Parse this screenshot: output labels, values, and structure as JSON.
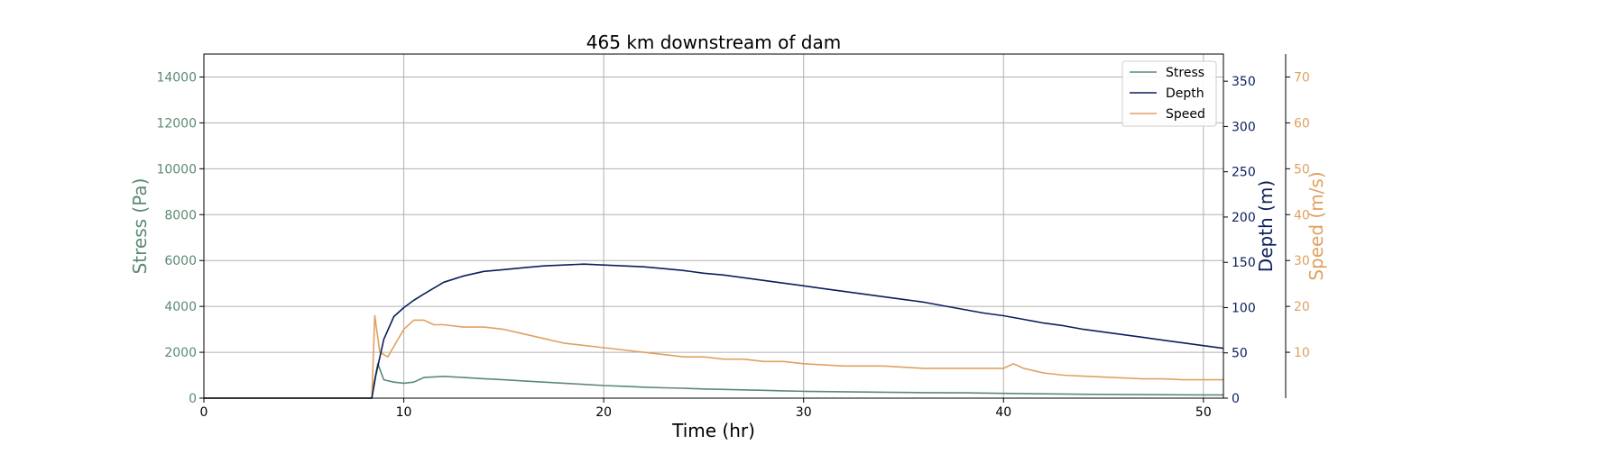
{
  "chart_data": {
    "type": "line",
    "title": "465 km downstream of dam",
    "xlabel": "Time (hr)",
    "xlim": [
      0,
      51
    ],
    "xticks": [
      0,
      10,
      20,
      30,
      40,
      50
    ],
    "grid": true,
    "legend": {
      "placement": "top-right",
      "entries": [
        "Stress",
        "Depth",
        "Speed"
      ]
    },
    "axes": {
      "stress": {
        "label": "Stress (Pa)",
        "ylim": [
          0,
          15000
        ],
        "ticks": [
          0,
          2000,
          4000,
          6000,
          8000,
          10000,
          12000,
          14000
        ],
        "color": "#5b8a72"
      },
      "depth": {
        "label": "Depth (m)",
        "ylim": [
          0,
          380
        ],
        "ticks": [
          0,
          50,
          100,
          150,
          200,
          250,
          300,
          350
        ],
        "color": "#0a1f5c"
      },
      "speed": {
        "label": "Speed (m/s)",
        "ylim": [
          0,
          75
        ],
        "ticks": [
          10,
          20,
          30,
          40,
          50,
          60,
          70
        ],
        "color": "#e0a060"
      }
    },
    "series": [
      {
        "name": "Stress",
        "axis": "stress",
        "color": "#5b8a72",
        "x": [
          0,
          8.4,
          8.5,
          8.7,
          9,
          9.5,
          10,
          10.5,
          11,
          12,
          13,
          14,
          15,
          16,
          17,
          18,
          19,
          20,
          21,
          22,
          23,
          24,
          25,
          26,
          27,
          28,
          29,
          30,
          32,
          34,
          36,
          38,
          40,
          42,
          44,
          46,
          48,
          50,
          51
        ],
        "y": [
          0,
          0,
          600,
          1500,
          800,
          700,
          650,
          700,
          900,
          950,
          900,
          850,
          800,
          750,
          700,
          650,
          600,
          550,
          520,
          480,
          450,
          430,
          400,
          380,
          360,
          340,
          320,
          300,
          280,
          260,
          240,
          230,
          210,
          190,
          170,
          160,
          150,
          140,
          140
        ]
      },
      {
        "name": "Depth",
        "axis": "depth",
        "color": "#0a1f5c",
        "x": [
          0,
          8.4,
          8.6,
          9,
          9.5,
          10,
          10.5,
          11,
          12,
          13,
          14,
          15,
          16,
          17,
          18,
          19,
          20,
          21,
          22,
          23,
          24,
          25,
          26,
          27,
          28,
          29,
          30,
          31,
          32,
          33,
          34,
          35,
          36,
          37,
          38,
          39,
          40,
          41,
          42,
          43,
          44,
          45,
          46,
          47,
          48,
          49,
          50,
          51
        ],
        "y": [
          0,
          0,
          25,
          65,
          90,
          100,
          108,
          115,
          128,
          135,
          140,
          142,
          144,
          146,
          147,
          148,
          147,
          146,
          145,
          143,
          141,
          138,
          136,
          133,
          130,
          127,
          124,
          121,
          118,
          115,
          112,
          109,
          106,
          102,
          98,
          94,
          91,
          87,
          83,
          80,
          76,
          73,
          70,
          67,
          64,
          61,
          58,
          55
        ]
      },
      {
        "name": "Speed",
        "axis": "speed",
        "color": "#e0a060",
        "x": [
          0,
          8.4,
          8.55,
          8.8,
          9.2,
          9.6,
          10,
          10.5,
          11,
          11.5,
          12,
          13,
          14,
          15,
          16,
          17,
          18,
          19,
          20,
          21,
          22,
          23,
          24,
          25,
          26,
          27,
          28,
          29,
          30,
          32,
          34,
          36,
          38,
          40,
          40.5,
          41,
          42,
          43,
          44,
          45,
          46,
          47,
          48,
          49,
          50,
          51
        ],
        "y": [
          0,
          0,
          18,
          10,
          9,
          12,
          15,
          17,
          17,
          16,
          16,
          15.5,
          15.5,
          15,
          14,
          13,
          12,
          11.5,
          11,
          10.5,
          10,
          9.5,
          9,
          9,
          8.5,
          8.5,
          8,
          8,
          7.5,
          7,
          7,
          6.5,
          6.5,
          6.5,
          7.5,
          6.5,
          5.5,
          5,
          4.8,
          4.6,
          4.4,
          4.2,
          4.2,
          4,
          4,
          4
        ]
      }
    ]
  }
}
